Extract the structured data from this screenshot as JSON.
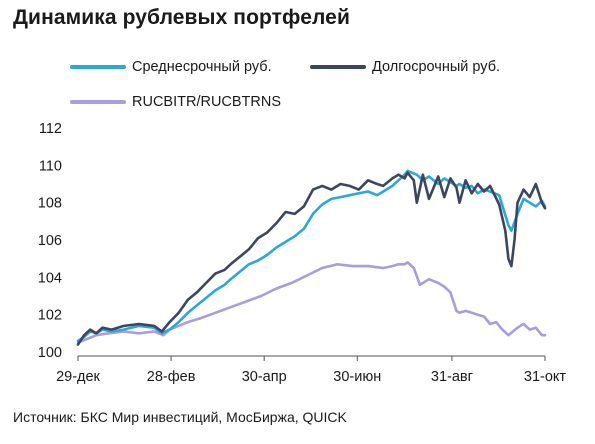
{
  "title": "Динамика рублевых портфелей",
  "source": "Источник: БКС Мир инвестиций, МосБиржа, QUICK",
  "chart_data": {
    "type": "line",
    "title": "Динамика рублевых портфелей",
    "xlabel": "",
    "ylabel": "",
    "x_tick_labels": [
      "29-дек",
      "28-фев",
      "30-апр",
      "30-июн",
      "31-авг",
      "31-окт"
    ],
    "x_tick_positions": [
      0,
      61,
      122,
      183,
      245,
      306
    ],
    "xlim": [
      0,
      306
    ],
    "ylim": [
      100,
      112
    ],
    "y_ticks": [
      100,
      102,
      104,
      106,
      108,
      110,
      112
    ],
    "legend_position": "top",
    "grid": false,
    "series": [
      {
        "name": "Среднесрочный руб.",
        "color": "#2aa8d8",
        "x": [
          0,
          4,
          8,
          12,
          16,
          22,
          30,
          40,
          50,
          55,
          60,
          66,
          72,
          78,
          84,
          90,
          96,
          100,
          106,
          112,
          118,
          124,
          130,
          136,
          142,
          148,
          154,
          160,
          166,
          172,
          178,
          184,
          190,
          196,
          200,
          206,
          210,
          214,
          216,
          222,
          226,
          230,
          236,
          240,
          244,
          248,
          250,
          254,
          258,
          262,
          266,
          270,
          276,
          282,
          284,
          288,
          292,
          296,
          300,
          304,
          306
        ],
        "y": [
          100.6,
          100.8,
          101.1,
          101.0,
          101.2,
          101.1,
          101.2,
          101.4,
          101.3,
          101.0,
          101.2,
          101.6,
          102.1,
          102.5,
          102.9,
          103.3,
          103.6,
          103.9,
          104.3,
          104.7,
          104.9,
          105.2,
          105.6,
          105.9,
          106.2,
          106.6,
          107.4,
          107.9,
          108.2,
          108.3,
          108.4,
          108.5,
          108.6,
          108.4,
          108.6,
          108.9,
          109.2,
          109.5,
          109.7,
          109.5,
          109.2,
          109.4,
          109.0,
          109.3,
          109.1,
          108.9,
          109.0,
          108.8,
          108.9,
          108.5,
          108.7,
          108.6,
          108.4,
          106.8,
          106.5,
          107.4,
          108.2,
          108.0,
          107.8,
          108.1,
          107.8
        ]
      },
      {
        "name": "Долгосрочный руб.",
        "color": "#3c4661",
        "x": [
          0,
          4,
          8,
          12,
          16,
          22,
          30,
          40,
          50,
          55,
          60,
          66,
          72,
          78,
          84,
          90,
          96,
          100,
          106,
          112,
          118,
          124,
          130,
          136,
          142,
          148,
          154,
          160,
          166,
          172,
          178,
          184,
          190,
          196,
          200,
          206,
          210,
          214,
          216,
          220,
          222,
          226,
          230,
          236,
          240,
          244,
          248,
          250,
          254,
          258,
          262,
          266,
          270,
          276,
          280,
          282,
          284,
          286,
          288,
          292,
          296,
          300,
          304,
          306
        ],
        "y": [
          100.4,
          100.9,
          101.2,
          101.0,
          101.3,
          101.2,
          101.4,
          101.5,
          101.4,
          101.1,
          101.6,
          102.1,
          102.8,
          103.2,
          103.7,
          104.2,
          104.4,
          104.7,
          105.1,
          105.5,
          106.1,
          106.4,
          106.9,
          107.5,
          107.4,
          107.8,
          108.7,
          108.9,
          108.7,
          109.0,
          108.9,
          108.7,
          109.2,
          109.0,
          108.9,
          109.3,
          109.5,
          109.3,
          109.6,
          109.2,
          108.0,
          109.5,
          108.2,
          109.4,
          108.3,
          109.3,
          108.8,
          108.0,
          109.2,
          108.5,
          109.0,
          108.6,
          108.9,
          107.9,
          106.5,
          105.0,
          104.6,
          106.0,
          108.0,
          108.7,
          108.3,
          109.0,
          108.0,
          107.7
        ]
      },
      {
        "name": "RUCBITR/RUCBTRNS",
        "color": "#a99ce0",
        "x": [
          0,
          6,
          12,
          20,
          30,
          40,
          50,
          56,
          60,
          66,
          72,
          80,
          90,
          100,
          110,
          120,
          130,
          140,
          150,
          160,
          170,
          180,
          190,
          200,
          206,
          210,
          214,
          216,
          220,
          224,
          230,
          236,
          240,
          244,
          248,
          250,
          254,
          258,
          262,
          266,
          270,
          274,
          278,
          282,
          288,
          292,
          296,
          300,
          304,
          306
        ],
        "y": [
          100.5,
          100.7,
          100.9,
          101.0,
          101.1,
          101.0,
          101.1,
          100.9,
          101.2,
          101.4,
          101.6,
          101.8,
          102.1,
          102.4,
          102.7,
          103.0,
          103.4,
          103.7,
          104.1,
          104.5,
          104.7,
          104.6,
          104.6,
          104.5,
          104.6,
          104.7,
          104.7,
          104.8,
          104.5,
          103.6,
          103.9,
          103.7,
          103.5,
          103.2,
          102.2,
          102.1,
          102.2,
          102.1,
          102.0,
          101.9,
          101.5,
          101.6,
          101.2,
          100.9,
          101.3,
          101.5,
          101.2,
          101.3,
          100.9,
          100.9
        ]
      }
    ]
  }
}
